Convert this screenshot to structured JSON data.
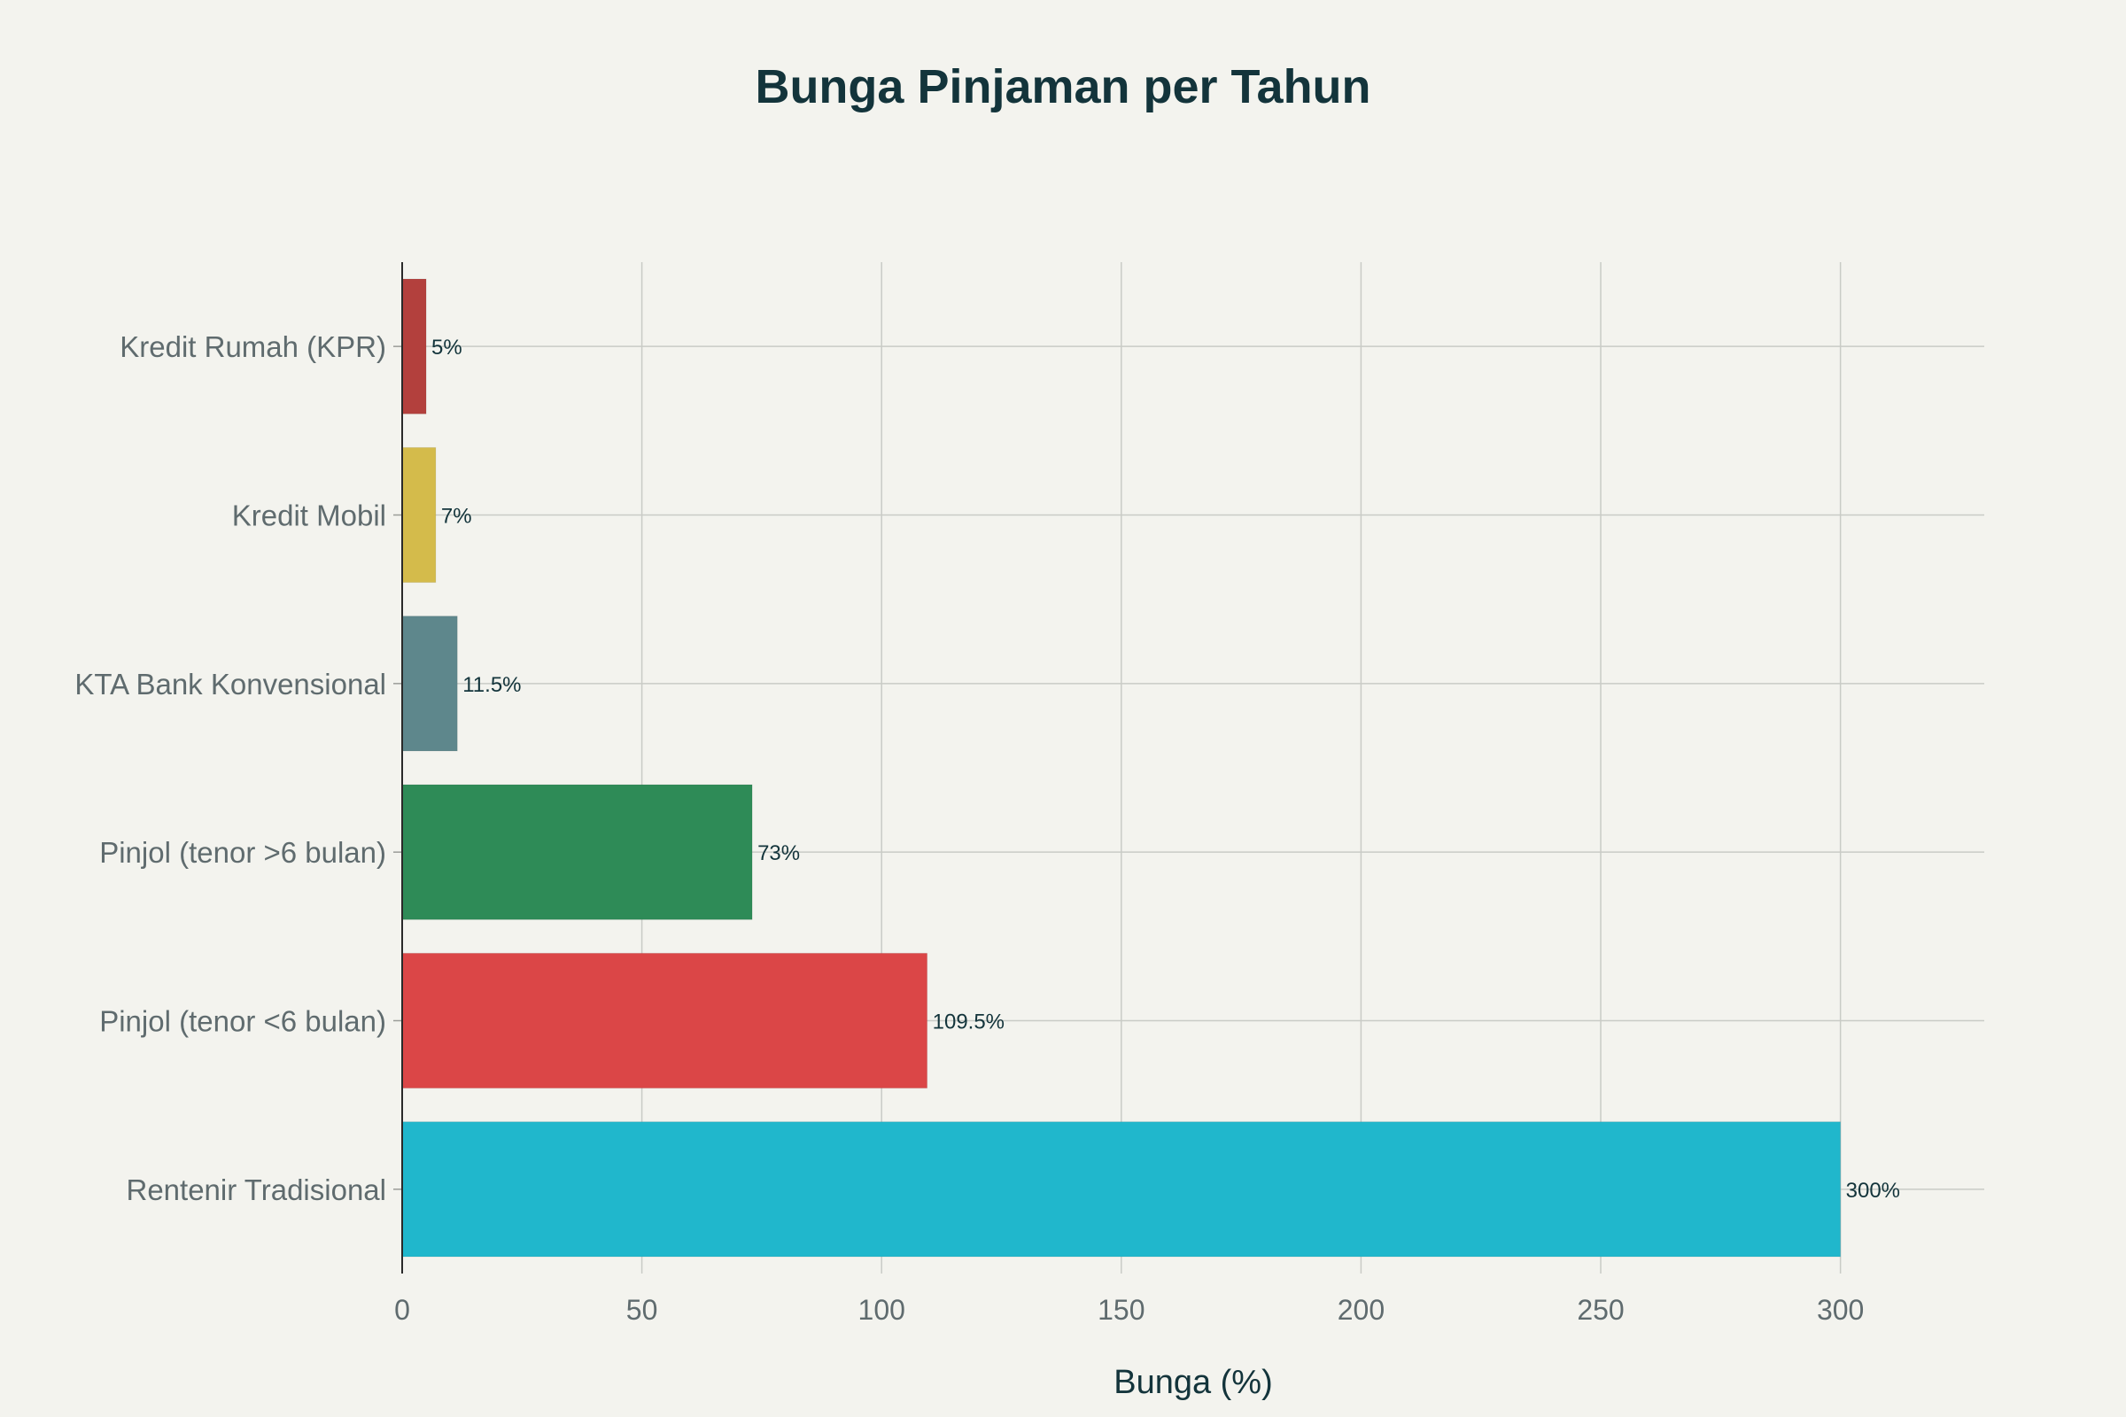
{
  "chart_data": {
    "type": "bar",
    "orientation": "horizontal",
    "title": "Bunga Pinjaman per Tahun",
    "xlabel": "Bunga (%)",
    "ylabel": "",
    "xlim": [
      0,
      330
    ],
    "xticks": [
      0,
      50,
      100,
      150,
      200,
      250,
      300
    ],
    "grid": true,
    "categories": [
      "Kredit Rumah (KPR)",
      "Kredit Mobil",
      "KTA Bank Konvensional",
      "Pinjol (tenor >6 bulan)",
      "Pinjol (tenor <6 bulan)",
      "Rentenir Tradisional"
    ],
    "values": [
      5,
      7,
      11.5,
      73,
      109.5,
      300
    ],
    "data_labels": [
      "5%",
      "7%",
      "11.5%",
      "73%",
      "109.5%",
      "300%"
    ],
    "colors": [
      "#b3403d",
      "#d4bb4b",
      "#5e878c",
      "#2e8b57",
      "#db4647",
      "#20b7cc"
    ]
  }
}
